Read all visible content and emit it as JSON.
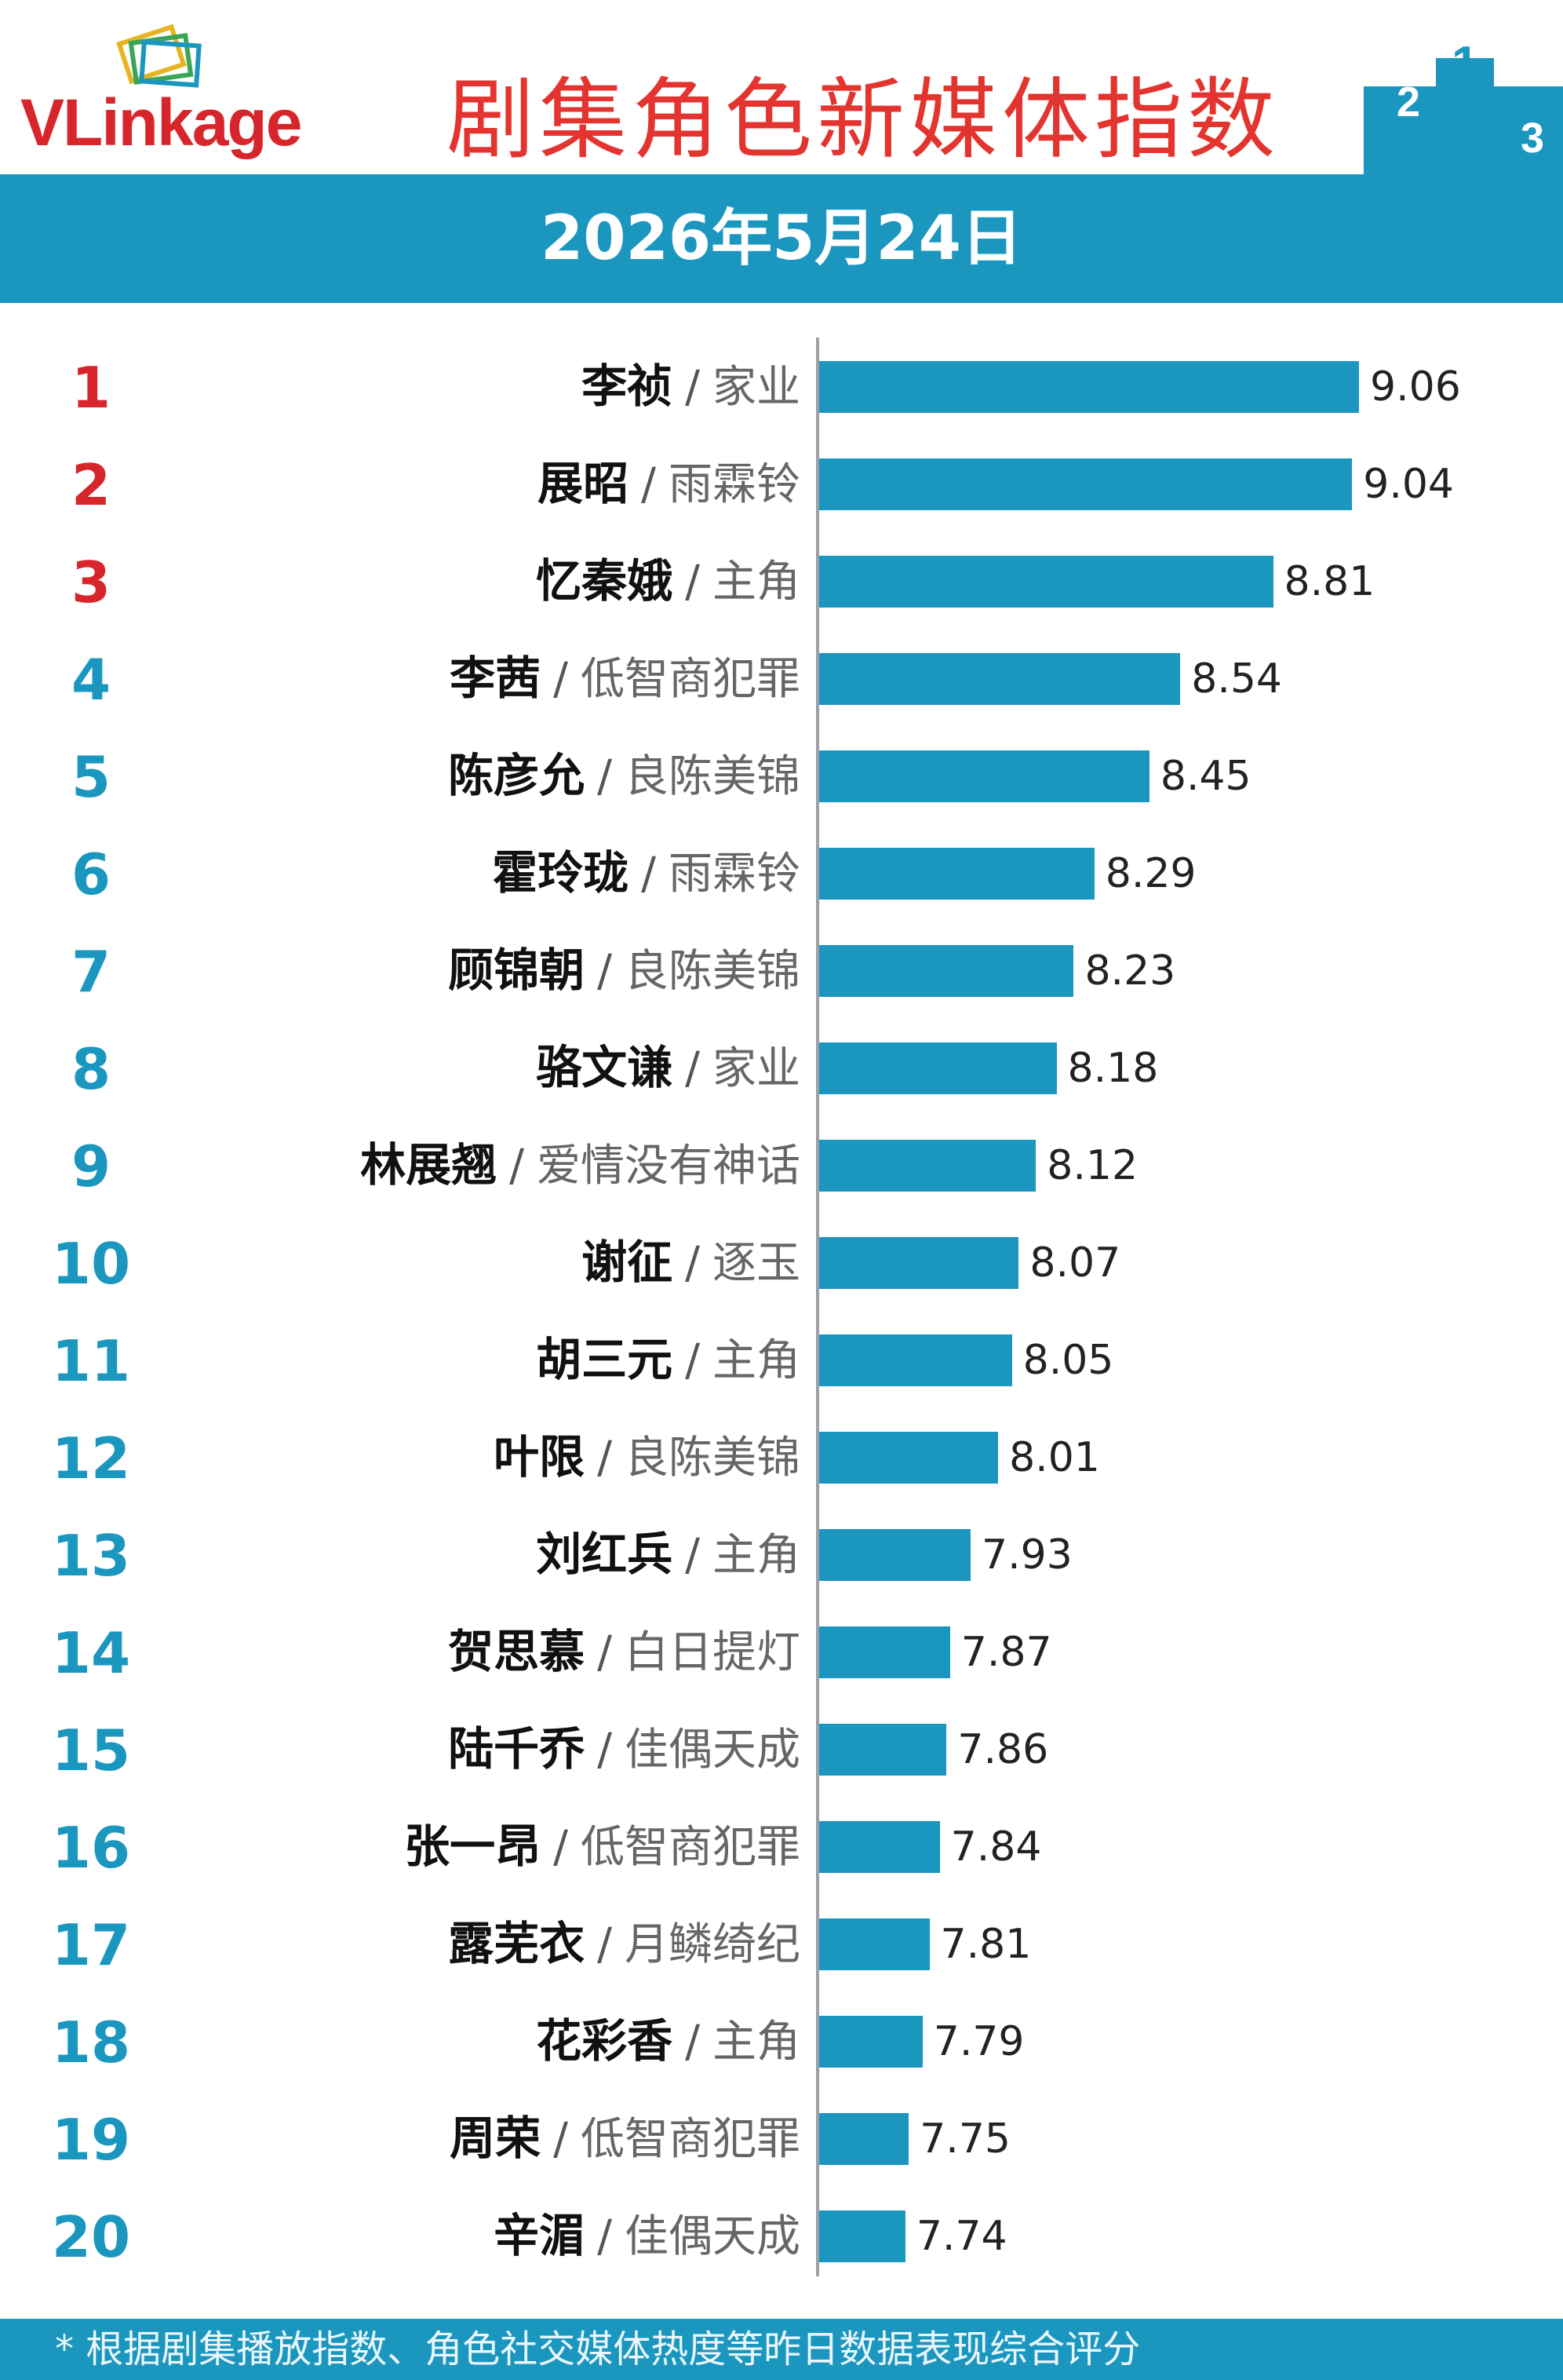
{
  "header": {
    "logo_text": "VLinkage",
    "title": "剧集角色新媒体指数"
  },
  "date_banner": "2026年5月24日",
  "footer_note": "* 根据剧集播放指数、角色社交媒体热度等昨日数据表现综合评分",
  "colors": {
    "accent": "#1b97bf",
    "top_rank": "#d7262b",
    "title": "#e3342f"
  },
  "chart_data": {
    "type": "bar",
    "orientation": "horizontal",
    "title": "剧集角色新媒体指数",
    "subtitle": "2026年5月24日",
    "grid": false,
    "rows": [
      {
        "rank": "1",
        "name": "李祯",
        "show": "家业",
        "value": 9.06
      },
      {
        "rank": "2",
        "name": "展昭",
        "show": "雨霖铃",
        "value": 9.04
      },
      {
        "rank": "3",
        "name": "忆秦娥",
        "show": "主角",
        "value": 8.81
      },
      {
        "rank": "4",
        "name": "李茜",
        "show": "低智商犯罪",
        "value": 8.54
      },
      {
        "rank": "5",
        "name": "陈彦允",
        "show": "良陈美锦",
        "value": 8.45
      },
      {
        "rank": "6",
        "name": "霍玲珑",
        "show": "雨霖铃",
        "value": 8.29
      },
      {
        "rank": "7",
        "name": "顾锦朝",
        "show": "良陈美锦",
        "value": 8.23
      },
      {
        "rank": "8",
        "name": "骆文谦",
        "show": "家业",
        "value": 8.18
      },
      {
        "rank": "9",
        "name": "林展翘",
        "show": "爱情没有神话",
        "value": 8.12
      },
      {
        "rank": "10",
        "name": "谢征",
        "show": "逐玉",
        "value": 8.07
      },
      {
        "rank": "11",
        "name": "胡三元",
        "show": "主角",
        "value": 8.05
      },
      {
        "rank": "12",
        "name": "叶限",
        "show": "良陈美锦",
        "value": 8.01
      },
      {
        "rank": "13",
        "name": "刘红兵",
        "show": "主角",
        "value": 7.93
      },
      {
        "rank": "14",
        "name": "贺思慕",
        "show": "白日提灯",
        "value": 7.87
      },
      {
        "rank": "15",
        "name": "陆千乔",
        "show": "佳偶天成",
        "value": 7.86
      },
      {
        "rank": "16",
        "name": "张一昂",
        "show": "低智商犯罪",
        "value": 7.84
      },
      {
        "rank": "17",
        "name": "露芜衣",
        "show": "月鳞绮纪",
        "value": 7.81
      },
      {
        "rank": "18",
        "name": "花彩香",
        "show": "主角",
        "value": 7.79
      },
      {
        "rank": "19",
        "name": "周荣",
        "show": "低智商犯罪",
        "value": 7.75
      },
      {
        "rank": "20",
        "name": "辛湄",
        "show": "佳偶天成",
        "value": 7.74
      }
    ],
    "xlim": [
      7.5,
      9.06
    ]
  }
}
